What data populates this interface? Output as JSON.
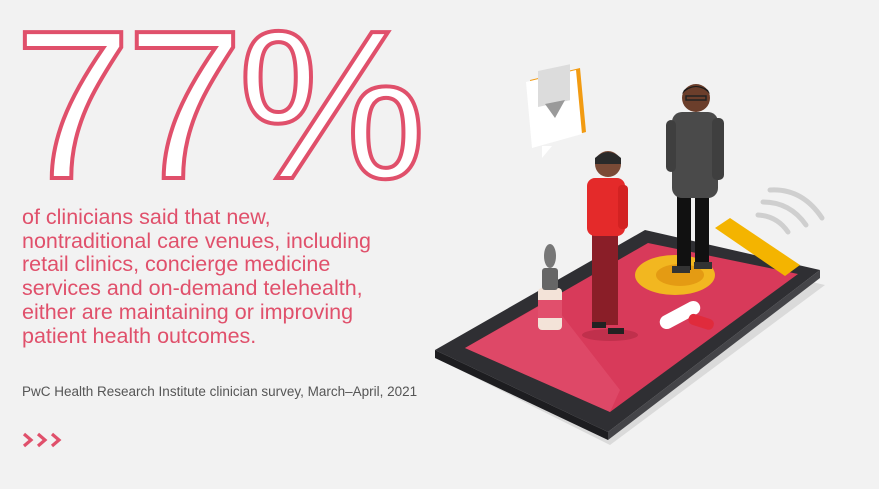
{
  "headline": {
    "stat": "77%"
  },
  "body": {
    "lines": [
      "of clinicians said that new,",
      "nontraditional care venues, including",
      "retail clinics, concierge medicine",
      "services and on-demand telehealth,",
      "either are maintaining or improving",
      "patient health outcomes."
    ]
  },
  "source": {
    "text": "PwC Health Research Institute clinician survey, March–April, 2021"
  },
  "colors": {
    "accent": "#e0506b",
    "background": "#f2f2f2",
    "orange": "#f29b12"
  },
  "icons": {
    "more": "triple-chevron-right-icon",
    "illustration": "smartphone-telehealth-illustration"
  }
}
